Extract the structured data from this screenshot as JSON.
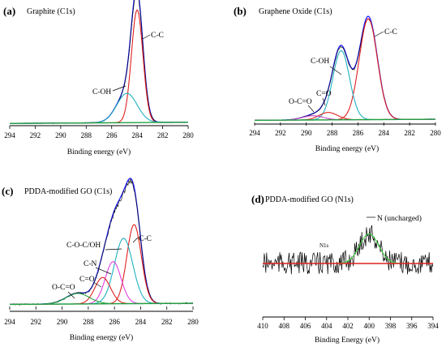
{
  "chart_data": [
    {
      "type": "line",
      "panel": "(a)",
      "title": "Graphite (C1s)",
      "xlabel": "Binding energy (eV)",
      "xlim": [
        294,
        280
      ],
      "xticks": [
        "294",
        "292",
        "290",
        "288",
        "286",
        "284",
        "282",
        "280"
      ],
      "annotations": [
        "C-C",
        "C-OH"
      ],
      "series": [
        {
          "color": "#1a1aff",
          "role": "measured"
        },
        {
          "color": "#000000",
          "role": "raw"
        },
        {
          "color": "#e02020",
          "role": "fit",
          "center": 284.0,
          "height": 1.0,
          "width": 0.45
        },
        {
          "color": "#20b0c0",
          "role": "fit",
          "center": 284.8,
          "height": 0.26,
          "width": 0.8
        },
        {
          "color": "#20a040",
          "role": "baseline"
        }
      ]
    },
    {
      "type": "line",
      "panel": "(b)",
      "title": "Graphene Oxide (C1s)",
      "xlabel": "Binding energy (eV)",
      "xlim": [
        294,
        280
      ],
      "xticks": [
        "294",
        "292",
        "290",
        "288",
        "286",
        "284",
        "282",
        "280"
      ],
      "annotations": [
        "C-C",
        "C-OH",
        "C=O",
        "O-C=O"
      ],
      "series": [
        {
          "color": "#1a1aff",
          "role": "measured"
        },
        {
          "color": "#000000",
          "role": "raw"
        },
        {
          "color": "#e02020",
          "role": "fit",
          "center": 285.2,
          "height": 0.95,
          "width": 0.7
        },
        {
          "color": "#20b0c0",
          "role": "fit",
          "center": 287.3,
          "height": 0.65,
          "width": 0.65
        },
        {
          "color": "#e02020",
          "role": "fit",
          "center": 288.3,
          "height": 0.07,
          "width": 0.7
        },
        {
          "color": "#c040c0",
          "role": "fit",
          "center": 289.5,
          "height": 0.04,
          "width": 0.8
        },
        {
          "color": "#20a040",
          "role": "baseline"
        }
      ]
    },
    {
      "type": "line",
      "panel": "(c)",
      "title": "PDDA-modified GO (C1s)",
      "xlabel": "Binding energy (eV)",
      "xlim": [
        294,
        280
      ],
      "xticks": [
        "294",
        "292",
        "290",
        "288",
        "286",
        "284",
        "282",
        "280"
      ],
      "annotations": [
        "C-C",
        "C-O-C/OH",
        "C-N",
        "C=O",
        "O-C=O"
      ],
      "series": [
        {
          "color": "#1a1aff",
          "role": "measured"
        },
        {
          "color": "#000000",
          "role": "raw"
        },
        {
          "color": "#e02020",
          "role": "fit",
          "center": 284.5,
          "height": 0.75,
          "width": 0.55
        },
        {
          "color": "#20b0c0",
          "role": "fit",
          "center": 285.3,
          "height": 0.62,
          "width": 0.7
        },
        {
          "color": "#e040e0",
          "role": "fit",
          "center": 286.1,
          "height": 0.4,
          "width": 0.6
        },
        {
          "color": "#e02020",
          "role": "fit",
          "center": 286.9,
          "height": 0.25,
          "width": 0.6
        },
        {
          "color": "#20a040",
          "role": "fit",
          "center": 288.8,
          "height": 0.1,
          "width": 0.9
        },
        {
          "color": "#20a040",
          "role": "baseline"
        }
      ]
    },
    {
      "type": "line",
      "panel": "(d)",
      "title": "PDDA-modified GO (N1s)",
      "xlabel": "Binding Energy (eV)",
      "xlim": [
        410,
        394
      ],
      "xticks": [
        "410",
        "408",
        "406",
        "404",
        "402",
        "400",
        "398",
        "396",
        "394"
      ],
      "annotations": [
        "N (uncharged)",
        "N1s"
      ],
      "series": [
        {
          "color": "#000000",
          "role": "raw"
        },
        {
          "color": "#40d040",
          "role": "fit",
          "center": 400.0,
          "height": 0.6,
          "width": 0.9
        },
        {
          "color": "#e02020",
          "role": "baseline"
        }
      ]
    }
  ],
  "colors": {
    "measured": "#1a1aff",
    "fit_red": "#e02020",
    "fit_cyan": "#20b0c0",
    "fit_magenta": "#e040e0",
    "fit_green": "#20a040",
    "bright_green": "#40d040"
  }
}
